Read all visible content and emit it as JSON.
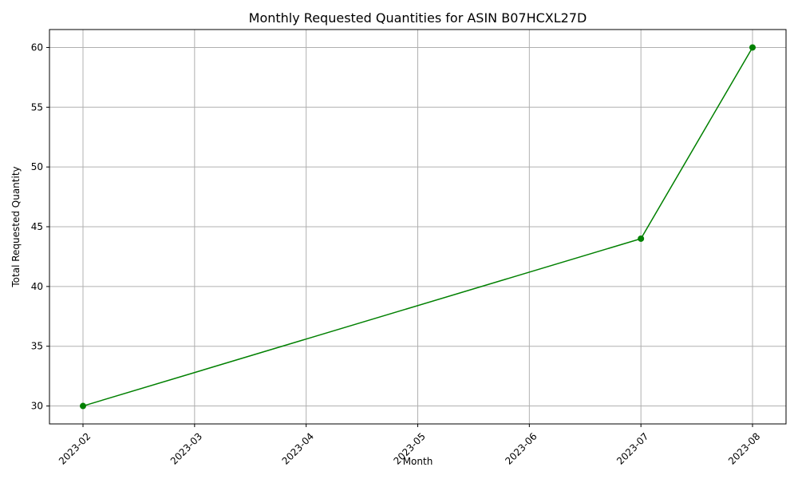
{
  "chart_data": {
    "type": "line",
    "title": "Monthly Requested Quantities for ASIN B07HCXL27D",
    "xlabel": "Month",
    "ylabel": "Total Requested Quantity",
    "x_ticks": [
      "2023-02",
      "2023-03",
      "2023-04",
      "2023-05",
      "2023-06",
      "2023-07",
      "2023-08"
    ],
    "y_ticks": [
      30,
      35,
      40,
      45,
      50,
      55,
      60
    ],
    "ylim": [
      28.5,
      61.5
    ],
    "grid": true,
    "series": [
      {
        "color": "#008000",
        "marker": "circle",
        "points": [
          {
            "x": "2023-02",
            "y": 30
          },
          {
            "x": "2023-07",
            "y": 44
          },
          {
            "x": "2023-08",
            "y": 60
          }
        ]
      }
    ]
  }
}
